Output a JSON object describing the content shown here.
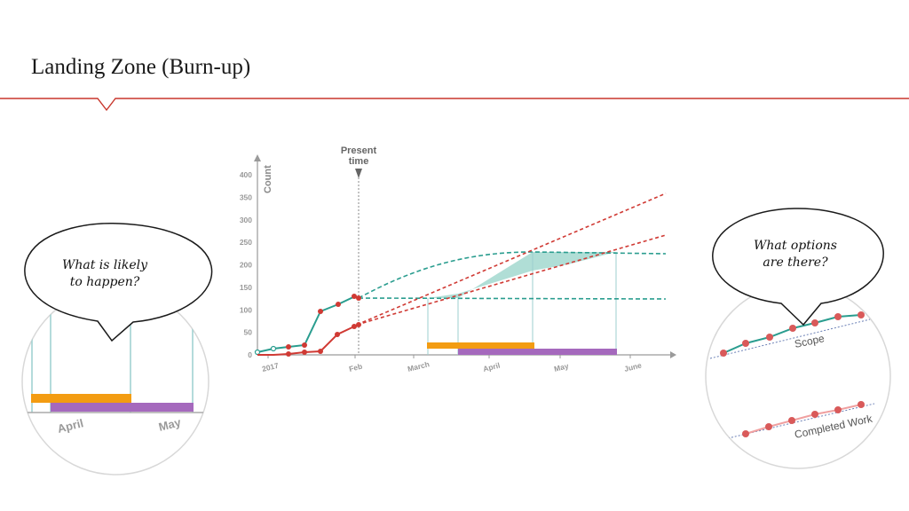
{
  "title": "Landing Zone (Burn-up)",
  "bubbles": {
    "left": {
      "line1": "What is likely",
      "line2": "to happen?"
    },
    "right": {
      "line1": "What options",
      "line2": "are there?"
    }
  },
  "colors": {
    "accent": "#c8372d",
    "scope": "#2a9d8f",
    "done": "#d03a34",
    "landing": "#8fd0c4",
    "orange": "#f39c12",
    "purple": "#a569bd"
  },
  "chart_data": {
    "type": "line",
    "ylabel": "Count",
    "yticks": [
      0,
      50,
      100,
      150,
      200,
      250,
      300,
      350,
      400
    ],
    "ylim": [
      0,
      420
    ],
    "xticks": [
      "2017",
      "Feb",
      "March",
      "April",
      "May",
      "June"
    ],
    "marker": {
      "label_line1": "Present",
      "label_line2": "time"
    }
  },
  "zoom_left": {
    "labels": [
      "April",
      "May"
    ]
  },
  "zoom_right": {
    "labels": [
      "Scope",
      "Completed Work"
    ]
  }
}
